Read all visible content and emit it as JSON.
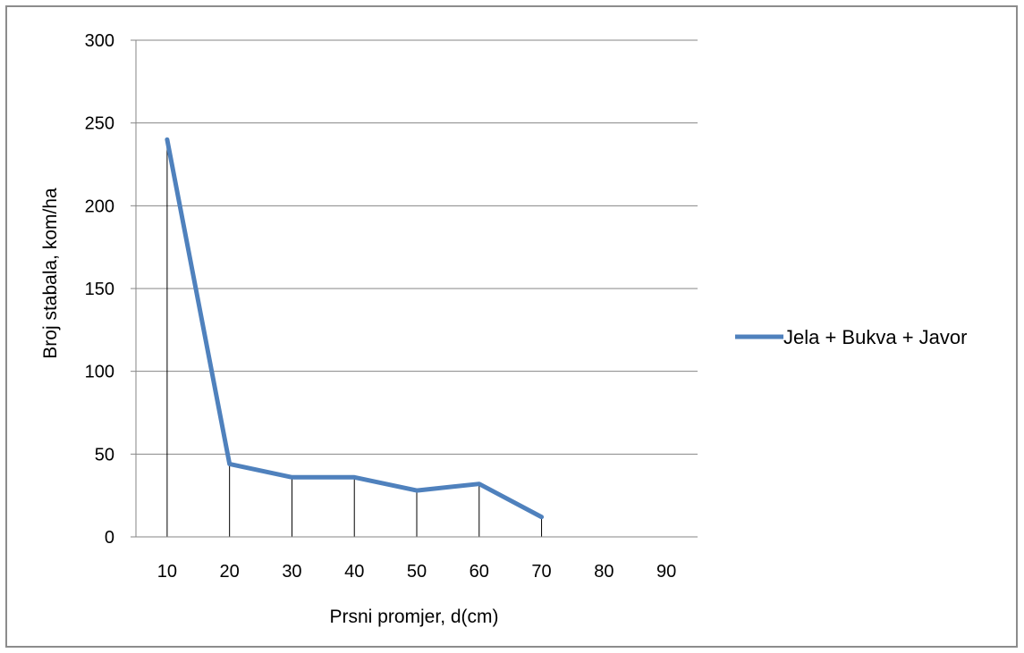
{
  "chart_data": {
    "type": "line",
    "title": "",
    "xlabel": "Prsni promjer, d(cm)",
    "ylabel": "Broj stabala, kom/ha",
    "categories": [
      "10",
      "20",
      "30",
      "40",
      "50",
      "60",
      "70",
      "80",
      "90"
    ],
    "yticks": [
      "0",
      "50",
      "100",
      "150",
      "200",
      "250",
      "300"
    ],
    "ylim": [
      0,
      300
    ],
    "grid": true,
    "legend_position": "right",
    "series": [
      {
        "name": "Jela + Bukva + Javor",
        "color": "#4f81bd",
        "values": [
          240,
          44,
          36,
          36,
          28,
          32,
          12,
          null,
          null
        ]
      }
    ],
    "drop_lines": true
  }
}
